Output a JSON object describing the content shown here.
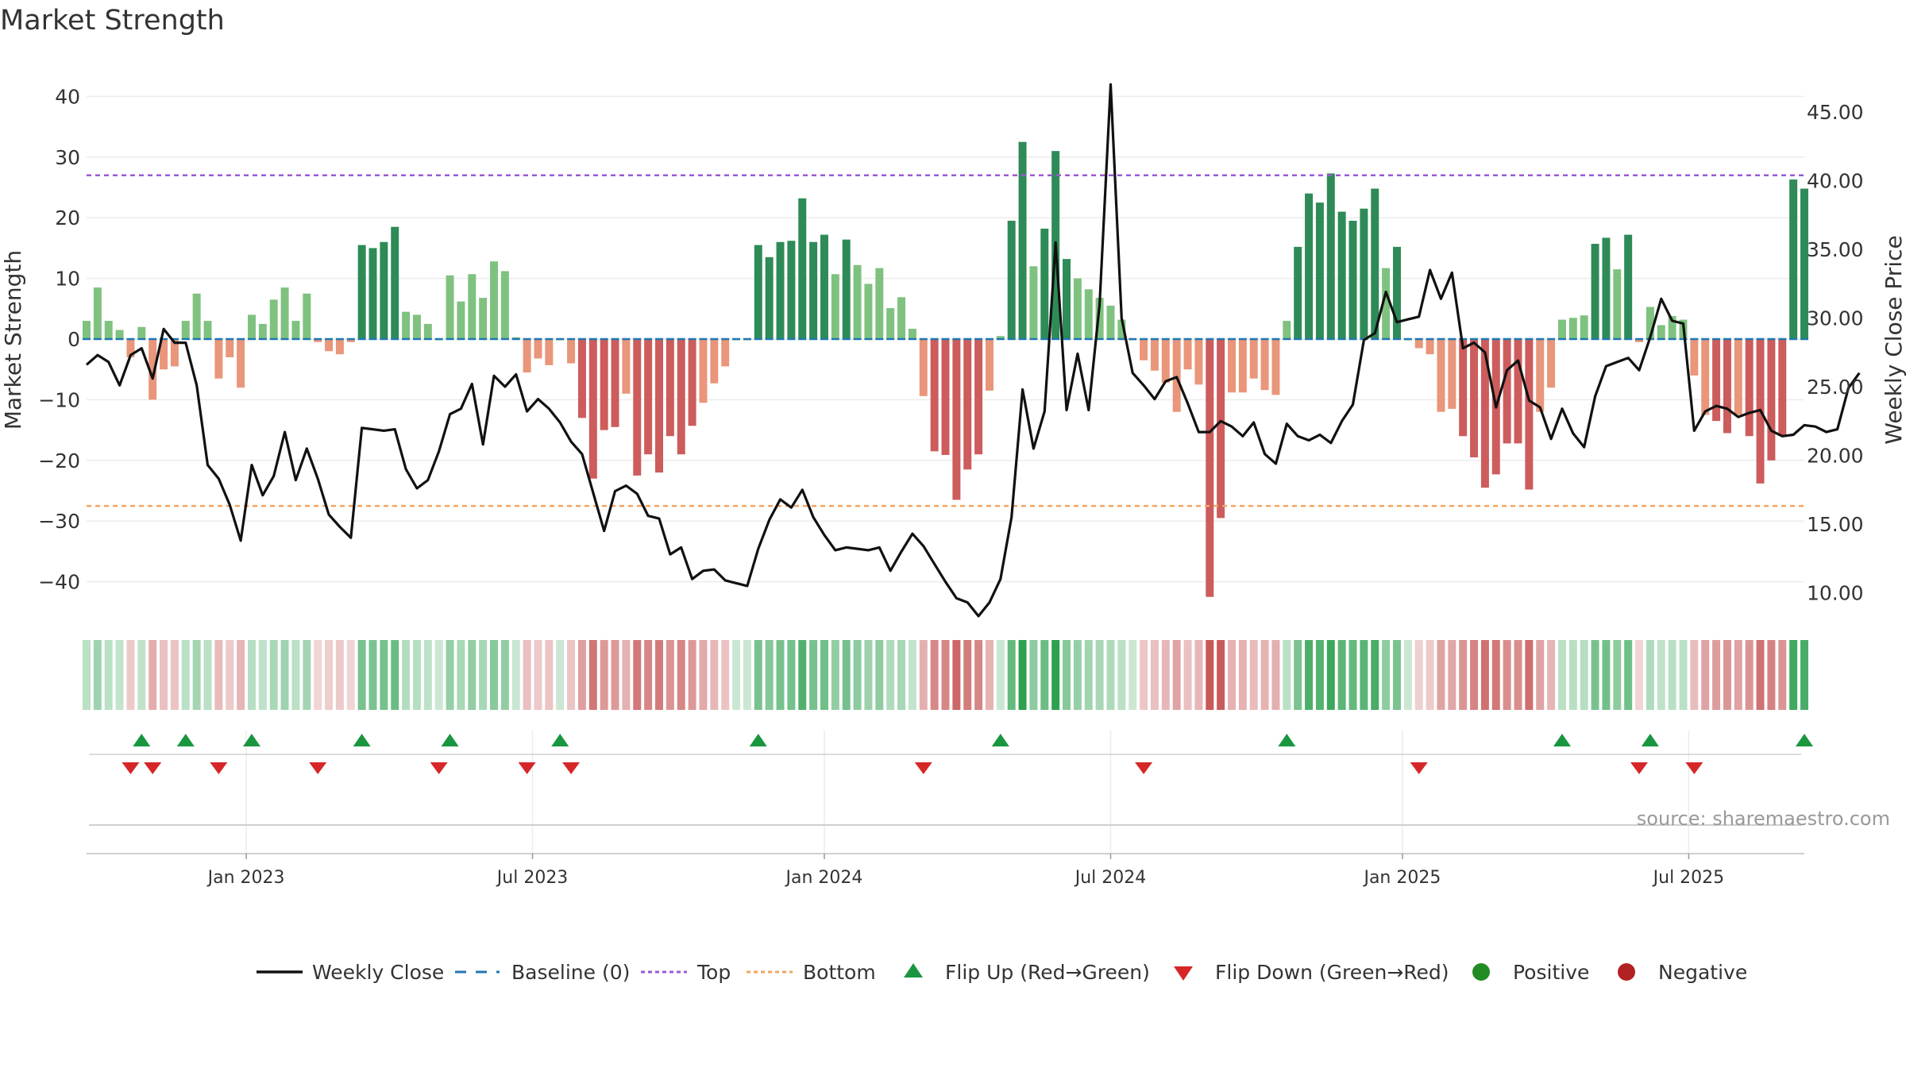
{
  "chart_data": {
    "type": "bar",
    "title": "Market Strength",
    "ylabel_left": "Market Strength",
    "ylabel_right": "Weekly Close Price",
    "left_ylim": [
      -45,
      46
    ],
    "right_ylim": [
      8,
      48
    ],
    "left_ticks": [
      40,
      30,
      20,
      10,
      0,
      -10,
      -20,
      -30,
      -40
    ],
    "left_tick_labels": [
      "40",
      "30",
      "20",
      "10",
      "0",
      "−10",
      "−20",
      "−30",
      "−40"
    ],
    "right_ticks": [
      45,
      40,
      35,
      30,
      25,
      20,
      15,
      10
    ],
    "right_tick_labels": [
      "45.00",
      "40.00",
      "35.00",
      "30.00",
      "25.00",
      "20.00",
      "15.00",
      "10.00"
    ],
    "x_tick_labels": [
      "Jan 2023",
      "Jul 2023",
      "Jan 2024",
      "Jul 2024",
      "Jan 2025",
      "Jul 2025"
    ],
    "x_tick_weeks": [
      14.5,
      40.5,
      67,
      93,
      119.5,
      145.5
    ],
    "top_line": 27,
    "bottom_line": -27.5,
    "strength": [
      3,
      8.5,
      3,
      1.5,
      -3,
      2,
      -10,
      -5,
      -4.5,
      3,
      7.5,
      3,
      -6.5,
      -3,
      -8,
      4,
      2.5,
      6.5,
      8.5,
      3,
      7.5,
      -0.5,
      -2,
      -2.5,
      -0.5,
      15.5,
      15,
      16,
      18.5,
      4.5,
      4,
      2.5,
      0,
      10.5,
      6.2,
      10.7,
      6.8,
      12.8,
      11.2,
      0.3,
      -5.5,
      -3.2,
      -4.3,
      0,
      -4,
      -13,
      -23,
      -15,
      -14.5,
      -9,
      -22.5,
      -19,
      -22,
      -16,
      -19,
      -14.3,
      -10.5,
      -7.3,
      -4.5,
      0,
      0,
      15.5,
      13.5,
      16,
      16.2,
      23.2,
      16,
      17.2,
      10.7,
      16.4,
      12.2,
      9.1,
      11.7,
      5.1,
      6.9,
      1.7,
      -9.4,
      -18.5,
      -19.1,
      -26.5,
      -21.5,
      -19,
      -8.5,
      0.5,
      19.5,
      32.5,
      12,
      18.2,
      31,
      13.2,
      10,
      8.2,
      6.8,
      5.5,
      3.2,
      0,
      -3.5,
      -5.2,
      -7.2,
      -12,
      -5,
      -7.5,
      -42.5,
      -29.5,
      -8.8,
      -8.8,
      -6.5,
      -8.4,
      -9.2,
      3,
      15.2,
      24,
      22.5,
      27.3,
      21,
      19.5,
      21.5,
      24.8,
      11.7,
      15.2,
      0,
      -1.5,
      -2.5,
      -12,
      -11.5,
      -16,
      -19.5,
      -24.5,
      -22.3,
      -17.2,
      -17.2,
      -24.8,
      -12,
      -8,
      3.2,
      3.5,
      3.9,
      15.7,
      16.7,
      11.5,
      17.2,
      -0.5,
      5.3,
      2.3,
      3.8,
      3.2,
      -6,
      -12.5,
      -13.5,
      -15.5,
      -12.5,
      -16,
      -23.8,
      -20,
      -15.8,
      26.3,
      24.8
    ],
    "weekly_close": [
      26.6,
      27.3,
      26.8,
      25.1,
      27.3,
      27.8,
      25.6,
      29.2,
      28.2,
      28.2,
      25.1,
      19.3,
      18.3,
      16.4,
      13.8,
      19.3,
      17.1,
      18.5,
      21.7,
      18.2,
      20.5,
      18.3,
      15.7,
      14.8,
      14,
      22,
      21.9,
      21.8,
      21.9,
      19,
      17.6,
      18.2,
      20.3,
      23,
      23.4,
      25.2,
      20.8,
      25.8,
      25,
      25.9,
      23.2,
      24.1,
      23.4,
      22.4,
      21,
      20.1,
      17.3,
      14.5,
      17.4,
      17.8,
      17.2,
      15.6,
      15.4,
      12.8,
      13.3,
      11,
      11.6,
      11.7,
      10.9,
      10.7,
      10.5,
      13.2,
      15.3,
      16.8,
      16.2,
      17.5,
      15.5,
      14.2,
      13.1,
      13.3,
      13.2,
      13.1,
      13.3,
      11.6,
      13,
      14.3,
      13.4,
      12.1,
      10.8,
      9.6,
      9.3,
      8.3,
      9.3,
      11,
      15.5,
      24.8,
      20.5,
      23.2,
      35.5,
      23.3,
      27.4,
      23.3,
      31,
      47,
      30,
      26,
      25.1,
      24.1,
      25.4,
      25.7,
      23.8,
      21.7,
      21.7,
      22.5,
      22.1,
      21.4,
      22.4,
      20.1,
      19.4,
      22.3,
      21.4,
      21.1,
      21.5,
      20.9,
      22.5,
      23.7,
      28.4,
      28.9,
      31.9,
      29.7,
      29.9,
      30.1,
      33.5,
      31.4,
      33.3,
      27.8,
      28.2,
      27.5,
      23.5,
      26.2,
      26.9,
      24,
      23.5,
      21.2,
      23.4,
      21.6,
      20.6,
      24.3,
      26.5,
      26.8,
      27.1,
      26.2,
      28.6,
      31.4,
      29.8,
      29.6,
      21.8,
      23.2,
      23.6,
      23.4,
      22.8,
      23.1,
      23.3,
      21.8,
      21.4,
      21.5,
      22.2,
      22.1,
      21.7,
      21.9,
      24.9,
      26
    ],
    "flip_up_weeks": [
      5,
      9,
      15,
      25,
      33,
      43,
      61,
      83,
      109,
      134,
      142,
      156
    ],
    "flip_down_weeks": [
      4,
      6,
      12,
      21,
      32,
      40,
      44,
      76,
      96,
      121,
      141,
      146
    ],
    "baseline": 0,
    "source_text": "source: sharemaestro.com",
    "legend": [
      "Weekly Close",
      "Baseline (0)",
      "Top",
      "Bottom",
      "Flip Up (Red→Green)",
      "Flip Down (Green→Red)",
      "Positive",
      "Negative"
    ]
  },
  "colors": {
    "green_dark": "#2e8b57",
    "green_light": "#7fc27f",
    "red_dark": "#cd5c5c",
    "red_light": "#e9967a",
    "top_line": "#9b59d0",
    "bottom_line": "#f4a460",
    "baseline": "#1f77b4",
    "close_line": "#111111",
    "flip_up": "#1a9641",
    "flip_down": "#d62728",
    "positive_dot": "#228b22",
    "negative_dot": "#b22222"
  }
}
